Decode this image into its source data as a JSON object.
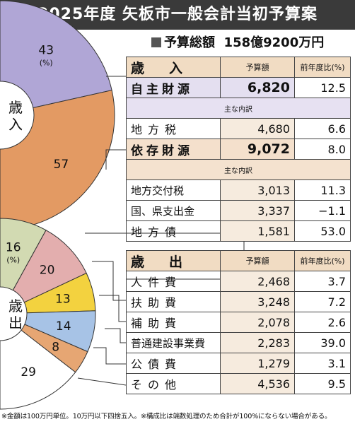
{
  "header": {
    "title": "2025年度 矢板市一般会計当初予算案",
    "total_label": "予算総額",
    "total_value": "158億9200万円"
  },
  "revenue": {
    "header": {
      "label": "歳　入",
      "amount": "予算額",
      "yoy": "前年度比(%)"
    },
    "self_funded": {
      "label": "自主財源",
      "amount": "6,820",
      "yoy": "12.5"
    },
    "self_breakdown_label": "主な内訳",
    "self_items": [
      {
        "label": "地方税",
        "amount": "4,680",
        "yoy": "6.6"
      }
    ],
    "dependent": {
      "label": "依存財源",
      "amount": "9,072",
      "yoy": "8.0"
    },
    "dep_breakdown_label": "主な内訳",
    "dep_items": [
      {
        "label": "地方交付税",
        "amount": "3,013",
        "yoy": "11.3"
      },
      {
        "label": "国、県支出金",
        "amount": "3,337",
        "yoy": "−1.1"
      },
      {
        "label": "地方債",
        "amount": "1,581",
        "yoy": "53.0"
      }
    ]
  },
  "expenditure": {
    "header": {
      "label": "歳　出",
      "amount": "予算額",
      "yoy": "前年度比(%)"
    },
    "items": [
      {
        "label": "人件費",
        "amount": "2,468",
        "yoy": "3.7"
      },
      {
        "label": "扶助費",
        "amount": "3,248",
        "yoy": "7.2"
      },
      {
        "label": "補助費",
        "amount": "2,078",
        "yoy": "2.6"
      },
      {
        "label": "普通建設事業費",
        "amount": "2,283",
        "yoy": "39.0"
      },
      {
        "label": "公債費",
        "amount": "1,279",
        "yoy": "3.1"
      },
      {
        "label": "その他",
        "amount": "4,536",
        "yoy": "9.5"
      }
    ]
  },
  "footnote": "※金額は100万円単位。10万円以下四捨五入。※構成比は端数処理のため合計が100%にならない場合がある。",
  "chart_data": [
    {
      "type": "pie",
      "center_label": "歳入",
      "unit_label": "(%)",
      "categories": [
        "自主財源",
        "依存財源"
      ],
      "values": [
        43,
        57
      ],
      "colors": [
        "#b0a6d6",
        "#e39a63"
      ]
    },
    {
      "type": "pie",
      "center_label": "歳出",
      "unit_label": "(%)",
      "categories": [
        "人件費",
        "扶助費",
        "補助費",
        "普通建設事業費",
        "公債費",
        "その他"
      ],
      "values": [
        16,
        20,
        13,
        14,
        8,
        29
      ],
      "colors": [
        "#d2dab2",
        "#e3aeae",
        "#f3d23f",
        "#a7c3e6",
        "#e6a673",
        "#ffffff"
      ]
    }
  ]
}
